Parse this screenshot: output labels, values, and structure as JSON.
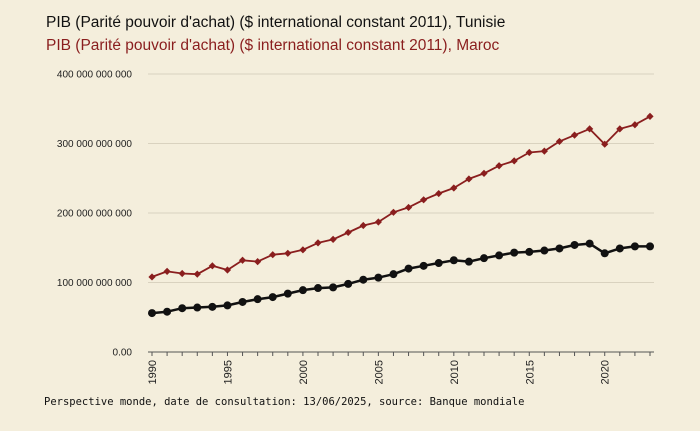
{
  "chart_data": {
    "type": "line",
    "titles": [
      "PIB (Parité pouvoir d'achat) ($ international constant 2011), Tunisie",
      "PIB (Parité pouvoir d'achat) ($ international constant 2011), Maroc"
    ],
    "x": [
      1990,
      1991,
      1992,
      1993,
      1994,
      1995,
      1996,
      1997,
      1998,
      1999,
      2000,
      2001,
      2002,
      2003,
      2004,
      2005,
      2006,
      2007,
      2008,
      2009,
      2010,
      2011,
      2012,
      2013,
      2014,
      2015,
      2016,
      2017,
      2018,
      2019,
      2020,
      2021,
      2022,
      2023
    ],
    "series": [
      {
        "name": "Tunisie",
        "color": "#111111",
        "marker": "circle",
        "values": [
          56000000000,
          58000000000,
          63000000000,
          64000000000,
          65000000000,
          67000000000,
          72000000000,
          76000000000,
          79000000000,
          84000000000,
          89000000000,
          92000000000,
          93000000000,
          98000000000,
          104000000000,
          107000000000,
          112000000000,
          120000000000,
          124000000000,
          128000000000,
          132000000000,
          130000000000,
          135000000000,
          139000000000,
          143000000000,
          144000000000,
          146000000000,
          149000000000,
          154000000000,
          156000000000,
          142000000000,
          149000000000,
          152000000000,
          152000000000
        ]
      },
      {
        "name": "Maroc",
        "color": "#8a1e1e",
        "marker": "diamond",
        "values": [
          108000000000,
          116000000000,
          113000000000,
          112000000000,
          124000000000,
          118000000000,
          132000000000,
          130000000000,
          140000000000,
          142000000000,
          147000000000,
          157000000000,
          162000000000,
          172000000000,
          182000000000,
          187000000000,
          201000000000,
          208000000000,
          219000000000,
          228000000000,
          236000000000,
          249000000000,
          257000000000,
          268000000000,
          275000000000,
          287000000000,
          289000000000,
          303000000000,
          312000000000,
          321000000000,
          299000000000,
          321000000000,
          327000000000,
          339000000000
        ]
      }
    ],
    "ylim": [
      0,
      400000000000
    ],
    "yticks": [
      {
        "value": 0,
        "label": "0.00"
      },
      {
        "value": 100000000000,
        "label": "100 000 000 000"
      },
      {
        "value": 200000000000,
        "label": "200 000 000 000"
      },
      {
        "value": 300000000000,
        "label": "300 000 000 000"
      },
      {
        "value": 400000000000,
        "label": "400 000 000 000"
      }
    ],
    "xticks": [
      1990,
      1995,
      2000,
      2005,
      2010,
      2015,
      2020
    ],
    "grid": true,
    "footer": "Perspective monde, date de consultation: 13/06/2025, source: Banque mondiale"
  },
  "colors": {
    "background": "#f4eedc",
    "grid": "#d9d2bf",
    "axis": "#555555"
  }
}
